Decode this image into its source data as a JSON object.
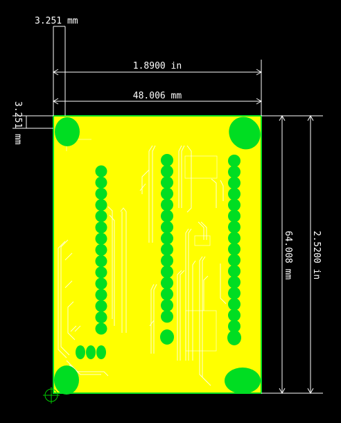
{
  "dimensions": {
    "offset_x": "3.251 mm",
    "width_in": "1.8900 in",
    "width_mm": "48.006 mm",
    "offset_y": "3.251 mm",
    "height_mm": "64.008 mm",
    "height_in": "2.5200 in"
  },
  "colors": {
    "background": "#000000",
    "board_fill": "#ffff00",
    "copper": "#00dd22",
    "dimension_line": "#ffffff",
    "origin_marker": "#00cc00"
  },
  "board": {
    "mounting_holes": 4,
    "header_pin_rows": 4
  }
}
